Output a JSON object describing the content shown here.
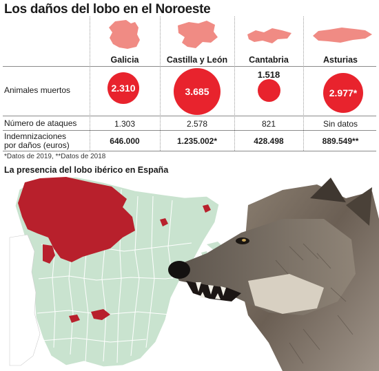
{
  "title": "Los daños del lobo en el Noroeste",
  "regions": [
    "Galicia",
    "Castilla y León",
    "Cantabria",
    "Asturias"
  ],
  "rows": {
    "animales_label": "Animales muertos",
    "ataques_label": "Número de ataques",
    "indemnizaciones_label_1": "Indemnizaciones",
    "indemnizaciones_label_2": "por daños (euros)"
  },
  "chart_data": {
    "type": "table",
    "categories": [
      "Galicia",
      "Castilla y León",
      "Cantabria",
      "Asturias"
    ],
    "animales_muertos": [
      2310,
      3685,
      1518,
      2977
    ],
    "animales_muertos_text": [
      "2.310",
      "3.685",
      "1.518",
      "2.977*"
    ],
    "numero_ataques_text": [
      "1.303",
      "2.578",
      "821",
      "Sin datos"
    ],
    "indemnizaciones_text": [
      "646.000",
      "1.235.002*",
      "428.498",
      "889.549**"
    ]
  },
  "footnote": "*Datos de 2019, **Datos de 2018",
  "map": {
    "title": "La presencia del lobo ibérico en España",
    "wolf_color": "#b8202c",
    "land_color": "#c9e3cf"
  },
  "colors": {
    "bubble": "#e8232d",
    "shape": "#f08b84"
  }
}
